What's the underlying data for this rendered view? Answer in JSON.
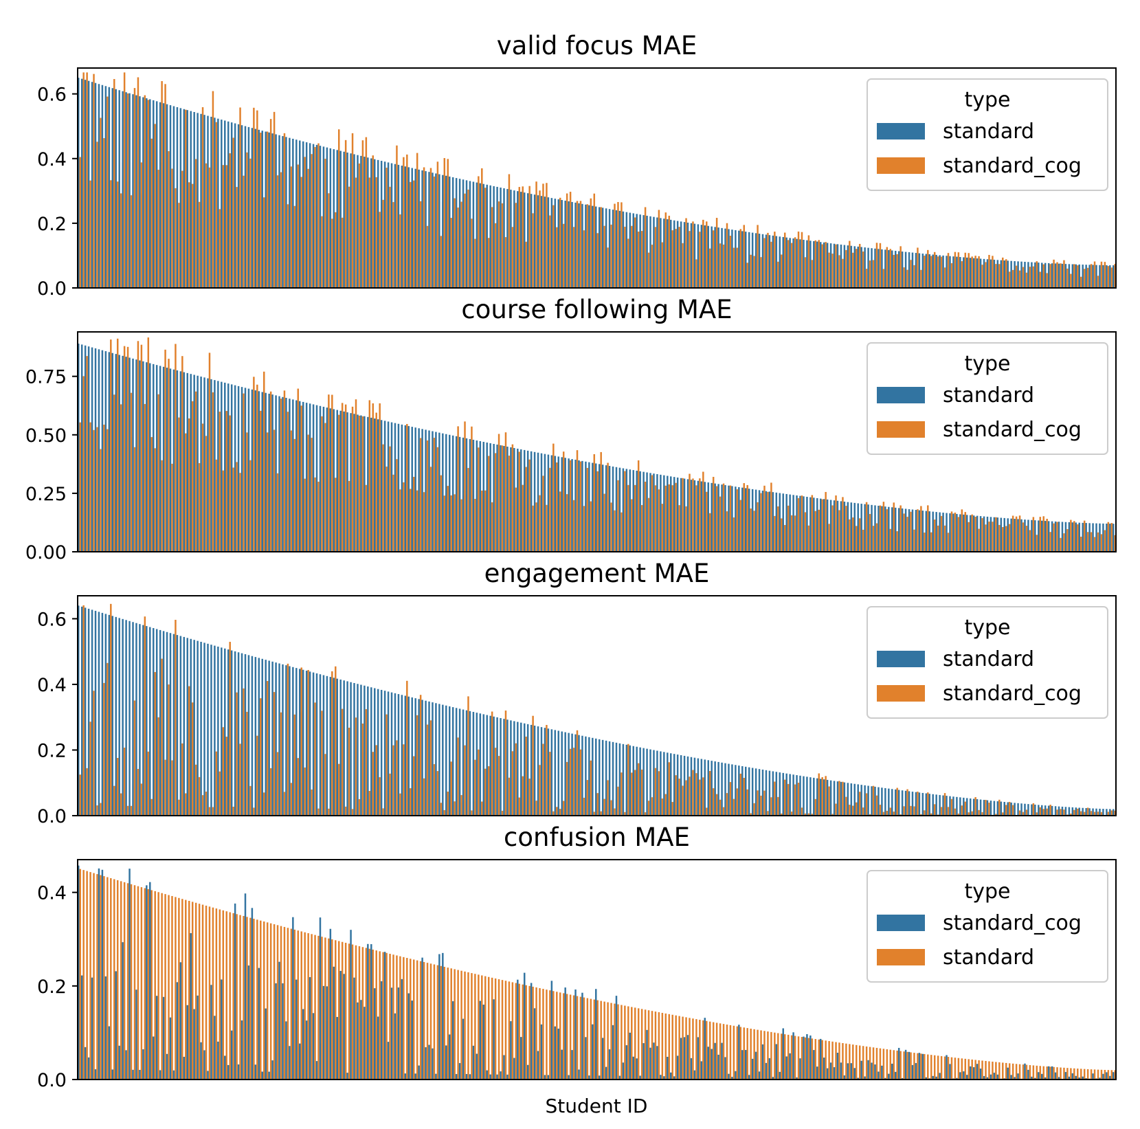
{
  "figure": {
    "xlabel": "Student ID",
    "colors": {
      "blue": "#3274a1",
      "orange": "#e1812c",
      "overlap": "#7d7b67"
    }
  },
  "chart_data": [
    {
      "type": "bar",
      "title": "valid focus MAE",
      "ylim": [
        0,
        0.68
      ],
      "yticks": [
        0.0,
        0.2,
        0.4,
        0.6
      ],
      "ytick_labels": [
        "0.0",
        "0.2",
        "0.4",
        "0.6"
      ],
      "legend": {
        "title": "type",
        "position": "top-right",
        "entries": [
          "standard",
          "standard_cog"
        ]
      },
      "n_students": 305,
      "sorted_by": "standard",
      "series": [
        {
          "name": "standard",
          "color": "#3274a1",
          "max": 0.64,
          "min": 0.07,
          "curve": 0.6
        },
        {
          "name": "standard_cog",
          "color": "#e1812c",
          "ratio_mean": 0.82,
          "ratio_spread": 0.38,
          "seed": 11
        }
      ]
    },
    {
      "type": "bar",
      "title": "course following MAE",
      "ylim": [
        0,
        0.94
      ],
      "yticks": [
        0.0,
        0.25,
        0.5,
        0.75
      ],
      "ytick_labels": [
        "0.00",
        "0.25",
        "0.50",
        "0.75"
      ],
      "legend": {
        "title": "type",
        "position": "top-right",
        "entries": [
          "standard",
          "standard_cog"
        ]
      },
      "n_students": 305,
      "sorted_by": "standard",
      "series": [
        {
          "name": "standard",
          "color": "#3274a1",
          "max": 0.88,
          "min": 0.12,
          "curve": 0.5
        },
        {
          "name": "standard_cog",
          "color": "#e1812c",
          "ratio_mean": 0.8,
          "ratio_spread": 0.35,
          "seed": 23
        }
      ]
    },
    {
      "type": "bar",
      "title": "engagement MAE",
      "ylim": [
        0,
        0.67
      ],
      "yticks": [
        0.0,
        0.2,
        0.4,
        0.6
      ],
      "ytick_labels": [
        "0.0",
        "0.2",
        "0.4",
        "0.6"
      ],
      "legend": {
        "title": "type",
        "position": "top-right",
        "entries": [
          "standard",
          "standard_cog"
        ]
      },
      "n_students": 305,
      "sorted_by": "standard",
      "series": [
        {
          "name": "standard",
          "color": "#3274a1",
          "max": 0.63,
          "min": 0.02,
          "curve": 0.45
        },
        {
          "name": "standard_cog",
          "color": "#e1812c",
          "ratio_mean": 0.42,
          "ratio_spread": 0.45,
          "seed": 37
        }
      ]
    },
    {
      "type": "bar",
      "title": "confusion MAE",
      "ylim": [
        0,
        0.47
      ],
      "yticks": [
        0.0,
        0.2,
        0.4
      ],
      "ytick_labels": [
        "0.0",
        "0.2",
        "0.4"
      ],
      "legend": {
        "title": "type",
        "position": "top-right",
        "entries": [
          "standard_cog",
          "standard"
        ]
      },
      "n_students": 305,
      "sorted_by": "standard",
      "series": [
        {
          "name": "standard_cog",
          "color": "#3274a1",
          "ratio_mean": 0.38,
          "ratio_spread": 0.45,
          "seed": 53
        },
        {
          "name": "standard",
          "color": "#e1812c",
          "max": 0.44,
          "min": 0.02,
          "curve": 0.45
        }
      ]
    }
  ]
}
